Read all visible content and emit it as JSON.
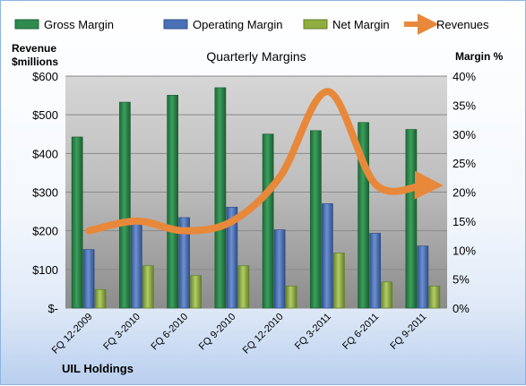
{
  "chart_data": {
    "type": "bar",
    "title": "Quarterly Margins",
    "company": "UIL Holdings",
    "left_axis_label": [
      "Revenue",
      "$millions"
    ],
    "right_axis_label": "Margin %",
    "categories": [
      "FQ 12-2009",
      "FQ 3-2010",
      "FQ 6-2010",
      "FQ 9-2010",
      "FQ 12-2010",
      "FQ 3-2011",
      "FQ 6-2011",
      "FQ 9-2011"
    ],
    "left_ticks": [
      "$-",
      "$100",
      "$200",
      "$300",
      "$400",
      "$500",
      "$600"
    ],
    "right_ticks": [
      "0%",
      "5%",
      "10%",
      "15%",
      "20%",
      "25%",
      "30%",
      "35%",
      "40%"
    ],
    "left_ylim": [
      0,
      600
    ],
    "right_ylim": [
      0,
      40
    ],
    "series": [
      {
        "name": "Gross Margin",
        "axis": "right",
        "type": "bar",
        "color": "#2e8b4e",
        "values": [
          29.5,
          35.5,
          36.7,
          38.0,
          30.0,
          30.6,
          32.0,
          30.8
        ]
      },
      {
        "name": "Operating Margin",
        "axis": "right",
        "type": "bar",
        "color": "#4a70b8",
        "values": [
          10.1,
          15.0,
          15.6,
          17.4,
          13.5,
          18.0,
          12.9,
          10.7
        ]
      },
      {
        "name": "Net Margin",
        "axis": "right",
        "type": "bar",
        "color": "#8fae3e",
        "values": [
          3.2,
          7.3,
          5.6,
          7.3,
          3.8,
          9.5,
          4.5,
          3.8
        ]
      },
      {
        "name": "Revenues",
        "axis": "left",
        "type": "line",
        "color": "#e8883a",
        "values": [
          200,
          225,
          200,
          225,
          340,
          560,
          320,
          318
        ]
      }
    ],
    "legend_position": "top",
    "grid": true
  }
}
